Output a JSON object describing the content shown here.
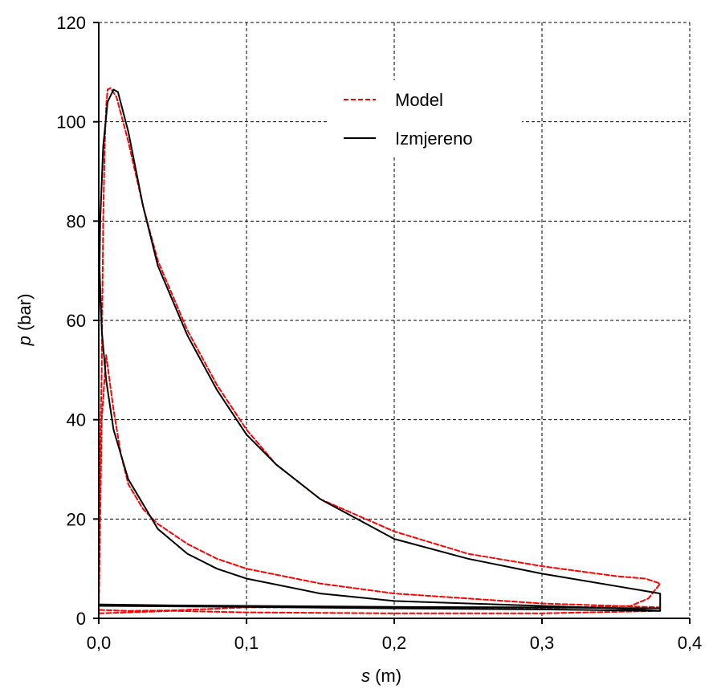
{
  "chart_data": {
    "type": "line",
    "xlabel": {
      "var": "s",
      "unit": " (m)"
    },
    "ylabel": {
      "var": "p",
      "unit": " (bar)"
    },
    "xlim": [
      0,
      0.4
    ],
    "ylim": [
      0,
      120
    ],
    "xticks": [
      0,
      0.1,
      0.2,
      0.3,
      0.4
    ],
    "xtick_labels": [
      "0,0",
      "0,1",
      "0,2",
      "0,3",
      "0,4"
    ],
    "yticks": [
      0,
      20,
      40,
      60,
      80,
      100,
      120
    ],
    "ytick_labels": [
      "0",
      "20",
      "40",
      "60",
      "80",
      "100",
      "120"
    ],
    "grid": true,
    "legend_position": "top-center",
    "series": [
      {
        "name": "Model",
        "color": "#ff0000",
        "style": "dashed",
        "points": [
          [
            0.38,
            1.5
          ],
          [
            0.3,
            1.0
          ],
          [
            0.2,
            1.0
          ],
          [
            0.1,
            1.2
          ],
          [
            0.05,
            1.5
          ],
          [
            0.02,
            1.2
          ],
          [
            0.0,
            1.0
          ],
          [
            0.0,
            3
          ],
          [
            0.0,
            20
          ],
          [
            0.002,
            50
          ],
          [
            0.003,
            80
          ],
          [
            0.004,
            95
          ],
          [
            0.005,
            103
          ],
          [
            0.006,
            106.5
          ],
          [
            0.008,
            106.8
          ],
          [
            0.012,
            105
          ],
          [
            0.02,
            96
          ],
          [
            0.03,
            83
          ],
          [
            0.04,
            72
          ],
          [
            0.06,
            58
          ],
          [
            0.08,
            47
          ],
          [
            0.1,
            38
          ],
          [
            0.12,
            31
          ],
          [
            0.15,
            24
          ],
          [
            0.2,
            17.5
          ],
          [
            0.25,
            13
          ],
          [
            0.3,
            10.5
          ],
          [
            0.35,
            8.5
          ],
          [
            0.37,
            8
          ],
          [
            0.38,
            7
          ],
          [
            0.372,
            4
          ],
          [
            0.36,
            2.5
          ],
          [
            0.3,
            2.0
          ],
          [
            0.2,
            2.2
          ],
          [
            0.1,
            2.2
          ],
          [
            0.05,
            1.6
          ],
          [
            0.02,
            1.5
          ],
          [
            0.0,
            1.7
          ],
          [
            0.0,
            1.7
          ],
          [
            0.002,
            40
          ],
          [
            0.005,
            53
          ],
          [
            0.01,
            42
          ],
          [
            0.015,
            33
          ],
          [
            0.02,
            27
          ],
          [
            0.03,
            22
          ],
          [
            0.04,
            19
          ],
          [
            0.06,
            15
          ],
          [
            0.08,
            12
          ],
          [
            0.1,
            10
          ],
          [
            0.15,
            7
          ],
          [
            0.2,
            5
          ],
          [
            0.25,
            4
          ],
          [
            0.3,
            3
          ],
          [
            0.35,
            2.5
          ],
          [
            0.38,
            2.2
          ]
        ]
      },
      {
        "name": "Izmjereno",
        "color": "#000000",
        "style": "solid",
        "points": [
          [
            0.0,
            2.8
          ],
          [
            0.05,
            2.6
          ],
          [
            0.1,
            2.5
          ],
          [
            0.2,
            2.3
          ],
          [
            0.3,
            2.2
          ],
          [
            0.38,
            2.0
          ],
          [
            0.38,
            1.5
          ],
          [
            0.3,
            1.8
          ],
          [
            0.2,
            2.0
          ],
          [
            0.1,
            2.3
          ],
          [
            0.0,
            2.5
          ],
          [
            0.0,
            30
          ],
          [
            0.0,
            60
          ],
          [
            0.001,
            80
          ],
          [
            0.003,
            95
          ],
          [
            0.006,
            104
          ],
          [
            0.01,
            106.5
          ],
          [
            0.013,
            106
          ],
          [
            0.02,
            98
          ],
          [
            0.03,
            83
          ],
          [
            0.04,
            71
          ],
          [
            0.06,
            57
          ],
          [
            0.08,
            46
          ],
          [
            0.1,
            37
          ],
          [
            0.12,
            31
          ],
          [
            0.15,
            24
          ],
          [
            0.2,
            16
          ],
          [
            0.25,
            12
          ],
          [
            0.3,
            9
          ],
          [
            0.35,
            6.5
          ],
          [
            0.37,
            5.5
          ],
          [
            0.38,
            5
          ],
          [
            0.38,
            1.5
          ],
          [
            0.35,
            2
          ],
          [
            0.3,
            2.5
          ],
          [
            0.25,
            3
          ],
          [
            0.2,
            3.5
          ],
          [
            0.15,
            5
          ],
          [
            0.1,
            8
          ],
          [
            0.08,
            10
          ],
          [
            0.06,
            13
          ],
          [
            0.04,
            18
          ],
          [
            0.02,
            28
          ],
          [
            0.01,
            38
          ],
          [
            0.005,
            48
          ],
          [
            0.002,
            58
          ],
          [
            0.0,
            75
          ]
        ]
      }
    ]
  }
}
